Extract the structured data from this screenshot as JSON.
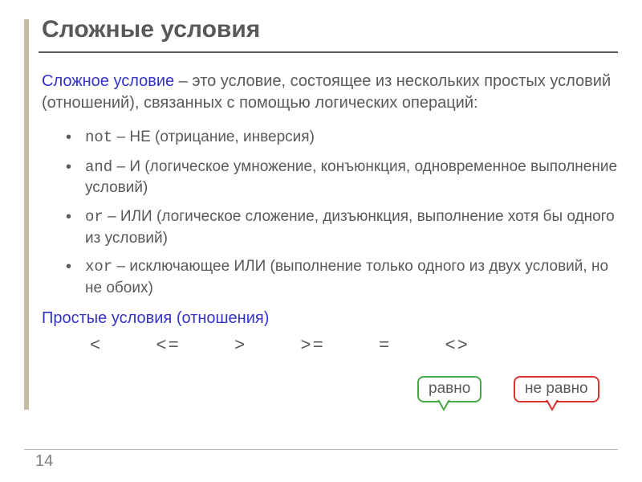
{
  "accent_color": "#c4bba2",
  "text_color": "#595959",
  "title": "Сложные условия",
  "intro": {
    "lead": "Сложное условие",
    "rest": " – это условие, состоящее из нескольких простых условий (отношений), связанных с помощью логических операций:"
  },
  "bullets": [
    {
      "kw": "not",
      "text": " – НЕ (отрицание, инверсия)"
    },
    {
      "kw": "and",
      "text": " – И (логическое умножение, конъюнкция, одновременное выполнение условий)"
    },
    {
      "kw": "or",
      "text": " – ИЛИ (логическое сложение, дизъюнкция, выполнение хотя бы одного из условий)"
    },
    {
      "kw": "xor",
      "text": " – исключающее ИЛИ (выполнение только одного из двух условий, но не обоих)"
    }
  ],
  "subhead": "Простые условия (отношения)",
  "operators": [
    "<",
    "<=",
    ">",
    ">=",
    "=",
    "<>"
  ],
  "callout_eq": "равно",
  "callout_neq": "не равно",
  "page_number": "14"
}
